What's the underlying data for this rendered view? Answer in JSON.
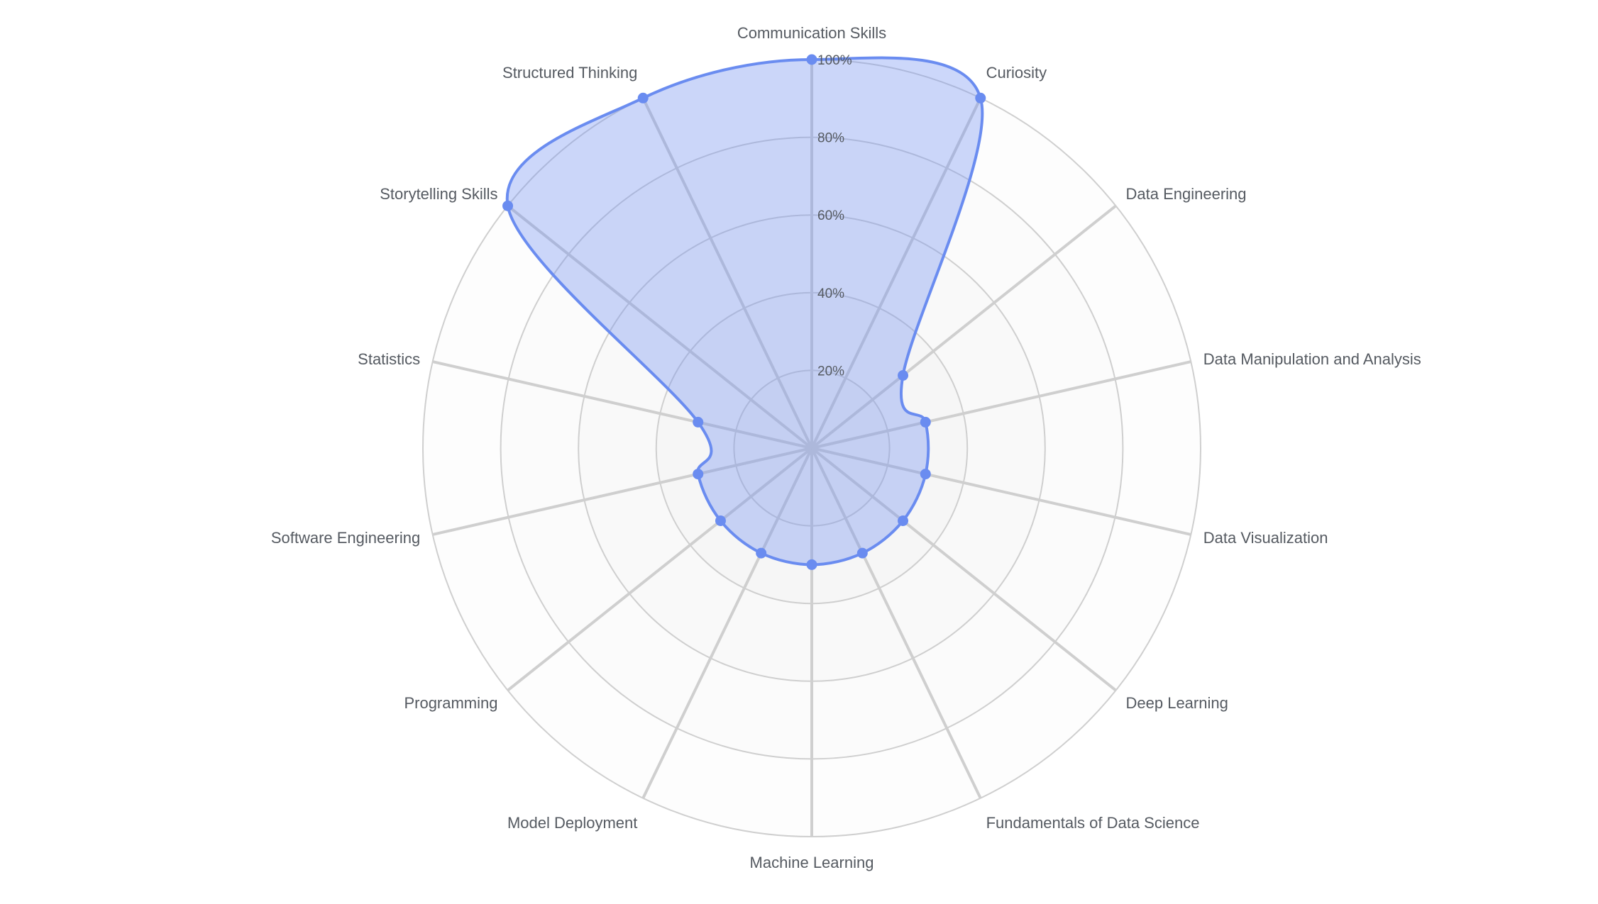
{
  "chart_data": {
    "type": "radar",
    "categories": [
      "Communication Skills",
      "Curiosity",
      "Data Engineering",
      "Data Manipulation and Analysis",
      "Data Visualization",
      "Deep Learning",
      "Fundamentals of Data Science",
      "Machine Learning",
      "Model Deployment",
      "Programming",
      "Software Engineering",
      "Statistics",
      "Storytelling Skills",
      "Structured Thinking"
    ],
    "series": [
      {
        "values": [
          100,
          100,
          30,
          30,
          30,
          30,
          30,
          30,
          30,
          30,
          30,
          30,
          100,
          100
        ]
      }
    ],
    "r_ticks": [
      "20%",
      "40%",
      "60%",
      "80%",
      "100%"
    ],
    "r_tick_values": [
      20,
      40,
      60,
      80,
      100
    ],
    "rmax": 100,
    "colors": {
      "series": "#6a8cf0",
      "series_fill": "rgba(109,140,240,0.35)",
      "grid": "#cfcfcf",
      "band": "#f6f6f6",
      "label": "#555a61"
    }
  }
}
